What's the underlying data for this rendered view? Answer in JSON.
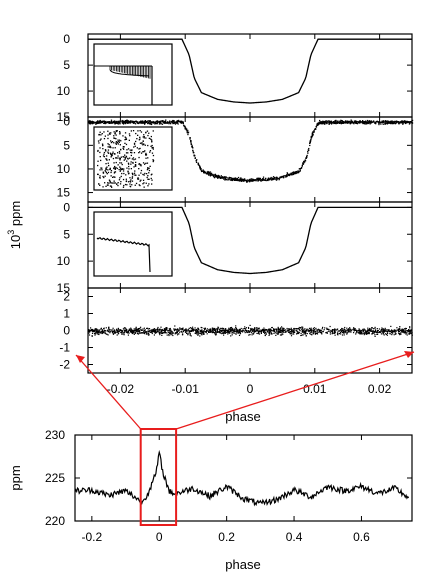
{
  "chart_data": [
    {
      "type": "line",
      "panel": "transit-model",
      "ylabel": "",
      "ylim": [
        15,
        -1
      ],
      "yticks": [
        0,
        5,
        10,
        15
      ],
      "xlim": [
        -0.025,
        0.025
      ],
      "series": [
        {
          "x": [
            -0.025,
            -0.0105,
            -0.0094,
            -0.0086,
            -0.0075,
            -0.005,
            -0.0025,
            0,
            0.0025,
            0.005,
            0.0075,
            0.0086,
            0.0094,
            0.0105,
            0.025
          ],
          "y": [
            0,
            0,
            3,
            7.5,
            10.3,
            11.6,
            12.1,
            12.3,
            12.1,
            11.6,
            10.3,
            7.5,
            3,
            0,
            0
          ]
        }
      ],
      "inset": {
        "description_visible": "damped oscillation then drop",
        "y": [
          7.5,
          7.9,
          8.1,
          8.3,
          8.4,
          8.5,
          15
        ]
      }
    },
    {
      "type": "scatter",
      "panel": "transit-noisy",
      "ylim": [
        17,
        -1
      ],
      "yticks": [
        0,
        5,
        10,
        15
      ],
      "xlim": [
        -0.025,
        0.025
      ],
      "curve": {
        "x": [
          -0.025,
          -0.0105,
          -0.0094,
          -0.0086,
          -0.0075,
          -0.005,
          -0.0025,
          0,
          0.0025,
          0.005,
          0.0075,
          0.0086,
          0.0094,
          0.0105,
          0.025
        ],
        "y": [
          0,
          0,
          3,
          7.5,
          10.3,
          11.6,
          12.1,
          12.3,
          12.1,
          11.6,
          10.3,
          7.5,
          3,
          0,
          0
        ]
      },
      "noise": 0.5
    },
    {
      "type": "line",
      "panel": "transit-fit",
      "ylim": [
        15,
        -1
      ],
      "yticks": [
        0,
        5,
        10,
        15
      ],
      "xlim": [
        -0.025,
        0.025
      ],
      "series": [
        {
          "x": [
            -0.025,
            -0.0105,
            -0.0094,
            -0.0086,
            -0.0075,
            -0.005,
            -0.0025,
            0,
            0.0025,
            0.005,
            0.0075,
            0.0086,
            0.0094,
            0.0105,
            0.025
          ],
          "y": [
            0,
            0,
            3,
            7.5,
            10.3,
            11.6,
            12.1,
            12.3,
            12.1,
            11.6,
            10.3,
            7.5,
            3,
            0,
            0
          ]
        }
      ],
      "inset": {
        "y": [
          8,
          8.3,
          8.6,
          8.8,
          9.1,
          9.6,
          15
        ]
      }
    },
    {
      "type": "scatter",
      "panel": "residuals",
      "ylim": [
        -2.5,
        2.5
      ],
      "yticks": [
        2,
        1,
        0,
        -1,
        -2
      ],
      "xlim": [
        -0.025,
        0.025
      ],
      "xticks": [
        -0.02,
        -0.01,
        0,
        0.01,
        0.02
      ],
      "xticklabels": [
        "-0.02",
        "-0.01",
        "0",
        "0.01",
        "0.02"
      ],
      "xlabel": "phase",
      "residual_sd": 0.3
    },
    {
      "type": "line",
      "panel": "full-phase",
      "xlim": [
        -0.25,
        0.75
      ],
      "ylim": [
        220,
        230
      ],
      "xticks": [
        -0.2,
        0,
        0.2,
        0.4,
        0.6
      ],
      "xticklabels": [
        "-0.2",
        "0",
        "0.2",
        "0.4",
        "0.6"
      ],
      "yticks": [
        220,
        225,
        230
      ],
      "xlabel": "phase",
      "ylabel": "ppm",
      "series": [
        {
          "x": [
            -0.25,
            -0.2,
            -0.15,
            -0.1,
            -0.05,
            -0.03,
            -0.01,
            0,
            0.01,
            0.03,
            0.05,
            0.1,
            0.15,
            0.2,
            0.25,
            0.3,
            0.35,
            0.4,
            0.45,
            0.5,
            0.55,
            0.6,
            0.65,
            0.7,
            0.74
          ],
          "y": [
            223.5,
            223.6,
            223,
            223.5,
            222.2,
            223.5,
            225.5,
            227.9,
            225.8,
            223.4,
            223.2,
            223.8,
            222.9,
            224,
            222.6,
            222,
            222.5,
            223.6,
            222.8,
            224,
            223.5,
            224,
            223.2,
            223.8,
            222.7
          ]
        }
      ]
    }
  ],
  "labels": {
    "shared_ylabel_base": "10",
    "shared_ylabel_exp": "3",
    "shared_ylabel_unit": " ppm"
  },
  "colors": {
    "highlight": "#e81d1d",
    "axis": "#000000"
  }
}
